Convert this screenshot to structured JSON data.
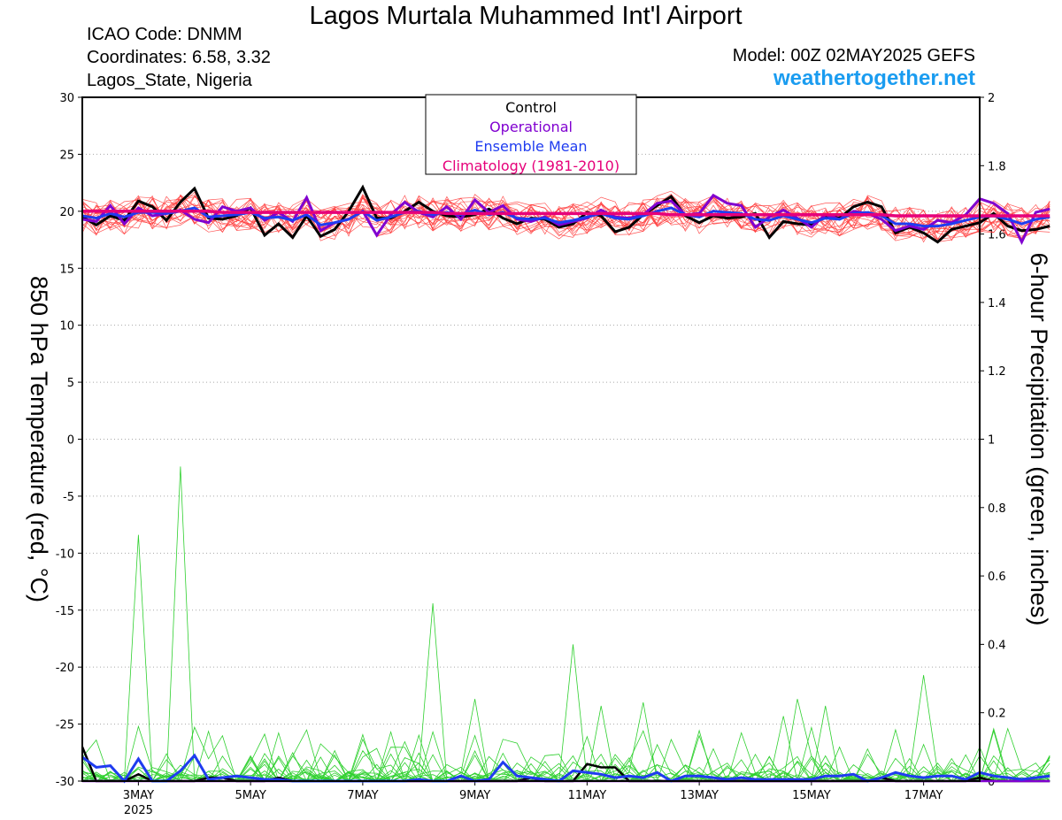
{
  "header": {
    "title": "Lagos Murtala Muhammed Int'l Airport",
    "icao": "ICAO Code: DNMM",
    "coordinates": "Coordinates: 6.58, 3.32",
    "location": "Lagos_State, Nigeria",
    "model_run": "Model: 00Z 02MAY2025 GEFS",
    "site": "weathertogether.net"
  },
  "colors": {
    "members_temp": "#ff3a3a",
    "control": "#000000",
    "operational": "#8000d0",
    "ensemble_mean": "#1f3cf0",
    "climatology": "#e6007a",
    "members_precip": "#2fd02f",
    "site": "#1a9cf0"
  },
  "chart_data": {
    "type": "line",
    "xlabel": "",
    "ylabel_left": "850 hPa Temperature (red, °C)",
    "ylabel_right": "6-hour Precipitation (green, inches)",
    "x_tick_labels": [
      "3MAY",
      "5MAY",
      "7MAY",
      "9MAY",
      "11MAY",
      "13MAY",
      "15MAY",
      "17MAY"
    ],
    "x_tick_year": "2025",
    "x_range_days": [
      2.0,
      18.0
    ],
    "x_tick_days": [
      3,
      5,
      7,
      9,
      11,
      13,
      15,
      17
    ],
    "x_step_days": 0.25,
    "ylim_temp": [
      -30,
      30
    ],
    "yticks_temp": [
      30,
      25,
      20,
      15,
      10,
      5,
      0,
      -5,
      -10,
      -15,
      -20,
      -25,
      -30
    ],
    "ylim_precip": [
      0,
      2
    ],
    "yticks_precip": [
      "2",
      "1.8",
      "1.6",
      "1.4",
      "1.2",
      "1",
      "0.8",
      "0.6",
      "0.4",
      "0.2",
      "0"
    ],
    "grid": true,
    "legend": {
      "placement": "top-center",
      "entries": [
        {
          "label": "Control",
          "color": "#000000"
        },
        {
          "label": "Operational",
          "color": "#8000d0"
        },
        {
          "label": "Ensemble Mean",
          "color": "#1f3cf0"
        },
        {
          "label": "Climatology (1981-2010)",
          "color": "#e6007a"
        }
      ]
    },
    "series": [
      {
        "name": "Control",
        "quantity": "temperature",
        "values": [
          19.5,
          18.8,
          19.6,
          19.2,
          20.9,
          20.4,
          19.2,
          20.8,
          22.0,
          19.4,
          19.3,
          19.6,
          20.3,
          17.9,
          18.9,
          17.7,
          19.6,
          17.8,
          18.4,
          20.0,
          22.1,
          19.4,
          19.4,
          20.0,
          20.8,
          20.0,
          19.6,
          19.5,
          19.7,
          20.2,
          19.4,
          18.9,
          19.4,
          19.3,
          18.6,
          18.9,
          19.9,
          19.6,
          18.2,
          18.6,
          19.7,
          20.5,
          21.3,
          19.6,
          19.0,
          19.6,
          19.4,
          19.5,
          19.8,
          17.7,
          19.1,
          18.9,
          18.8,
          19.6,
          19.4,
          20.4,
          20.8,
          20.4,
          18.1,
          18.6,
          18.1,
          17.3,
          18.4,
          18.7,
          19.0,
          19.8,
          18.7,
          18.3,
          18.4,
          18.7
        ]
      },
      {
        "name": "Operational",
        "quantity": "temperature",
        "values": [
          19.3,
          19.1,
          20.5,
          18.9,
          20.3,
          19.6,
          19.8,
          20.1,
          19.3,
          19.0,
          20.4,
          20.0,
          20.3,
          19.2,
          19.9,
          19.1,
          21.2,
          18.3,
          19.0,
          19.3,
          20.0,
          17.9,
          19.7,
          20.8,
          19.9,
          19.5,
          20.4,
          19.3,
          21.0,
          19.9,
          20.5,
          19.3,
          19.1,
          19.5,
          18.8,
          19.1,
          19.4,
          20.1,
          19.5,
          19.4,
          19.7,
          20.7,
          20.9,
          19.7,
          19.8,
          21.4,
          20.7,
          20.5,
          18.6,
          19.5,
          20.1,
          19.4,
          18.6,
          19.7,
          19.3,
          20.0,
          19.8,
          19.3,
          18.3,
          18.7,
          18.4,
          19.2,
          19.0,
          19.7,
          21.1,
          20.7,
          19.8,
          17.3,
          19.9,
          20.2
        ]
      },
      {
        "name": "Ensemble Mean",
        "quantity": "temperature",
        "values": [
          19.6,
          19.4,
          19.8,
          19.5,
          19.9,
          19.9,
          19.8,
          20.0,
          20.3,
          19.5,
          19.6,
          19.7,
          19.9,
          19.4,
          19.5,
          19.2,
          19.7,
          18.8,
          19.0,
          19.3,
          20.0,
          19.2,
          19.5,
          19.9,
          20.0,
          19.7,
          19.9,
          19.7,
          20.1,
          19.7,
          19.9,
          19.4,
          19.3,
          19.4,
          19.0,
          19.2,
          19.5,
          19.8,
          19.4,
          19.3,
          19.6,
          20.0,
          20.3,
          19.7,
          19.5,
          20.0,
          19.9,
          19.8,
          19.3,
          19.2,
          19.6,
          19.3,
          19.0,
          19.4,
          19.3,
          19.8,
          19.9,
          19.6,
          18.9,
          18.9,
          18.7,
          18.7,
          18.9,
          19.2,
          19.5,
          19.6,
          19.3,
          18.9,
          19.3,
          19.5
        ]
      },
      {
        "name": "Climatology (1981-2010)",
        "quantity": "temperature",
        "values": [
          20.0,
          20.0,
          20.0,
          20.0,
          20.0,
          20.0,
          20.0,
          20.0,
          20.0,
          20.0,
          19.9,
          19.9,
          19.9,
          19.9,
          19.9,
          19.9,
          19.9,
          19.9,
          19.9,
          19.9,
          19.9,
          19.9,
          19.9,
          19.9,
          19.9,
          19.9,
          19.8,
          19.8,
          19.8,
          19.8,
          19.8,
          19.8,
          19.8,
          19.8,
          19.8,
          19.8,
          19.8,
          19.8,
          19.8,
          19.8,
          19.8,
          19.8,
          19.7,
          19.7,
          19.7,
          19.7,
          19.7,
          19.7,
          19.7,
          19.7,
          19.7,
          19.7,
          19.7,
          19.7,
          19.7,
          19.7,
          19.7,
          19.7,
          19.6,
          19.6,
          19.6,
          19.6,
          19.6,
          19.6,
          19.6,
          19.6,
          19.6,
          19.6,
          19.6,
          19.6
        ]
      },
      {
        "name": "Control",
        "quantity": "precipitation",
        "values": [
          0.1,
          0.0,
          0.0,
          0.0,
          0.02,
          0.0,
          0.0,
          0.0,
          0.0,
          0.01,
          0.01,
          0.0,
          0.0,
          0.0,
          0.01,
          0.0,
          0.0,
          0.0,
          0.0,
          0.0,
          0.0,
          0.0,
          0.0,
          0.0,
          0.0,
          0.0,
          0.0,
          0.0,
          0.0,
          0.0,
          0.0,
          0.0,
          0.01,
          0.0,
          0.0,
          0.0,
          0.05,
          0.04,
          0.04,
          0.0,
          0.0,
          0.0,
          0.0,
          0.0,
          0.0,
          0.0,
          0.0,
          0.0,
          0.0,
          0.0,
          0.0,
          0.0,
          0.0,
          0.0,
          0.0,
          0.0,
          0.0,
          0.01,
          0.0,
          0.0,
          0.0,
          0.0,
          0.0,
          0.0,
          0.01,
          0.0,
          0.0,
          0.0,
          0.0,
          0.0
        ]
      },
      {
        "name": "Operational",
        "quantity": "precipitation",
        "values": [
          0.0,
          0.0,
          0.0,
          0.0,
          0.0,
          0.0,
          0.0,
          0.0,
          0.0,
          0.0,
          0.0,
          0.0,
          0.0,
          0.0,
          0.0,
          0.0,
          0.0,
          0.0,
          0.0,
          0.0,
          0.0,
          0.0,
          0.0,
          0.0,
          0.0,
          0.0,
          0.0,
          0.0,
          0.0,
          0.0,
          0.0,
          0.0,
          0.0,
          0.0,
          0.0,
          0.0,
          0.0,
          0.0,
          0.0,
          0.0,
          0.0,
          0.0,
          0.0,
          0.0,
          0.0,
          0.0,
          0.0,
          0.0,
          0.0,
          0.0,
          0.0,
          0.0,
          0.0,
          0.0,
          0.0,
          0.0,
          0.0,
          0.0,
          0.0,
          0.0,
          0.0,
          0.0,
          0.0,
          0.0,
          0.0,
          0.0,
          0.0,
          0.0,
          0.0,
          0.0
        ]
      },
      {
        "name": "Ensemble Mean",
        "quantity": "precipitation",
        "values": [
          0.07,
          0.04,
          0.045,
          0.0,
          0.065,
          0.0,
          0.0,
          0.03,
          0.075,
          0.005,
          0.01,
          0.015,
          0.01,
          0.005,
          0.005,
          0.0,
          0.0,
          0.0,
          0.0,
          0.0,
          0.0,
          0.0,
          0.0,
          0.0,
          0.005,
          0.0,
          0.0,
          0.015,
          0.0,
          0.005,
          0.055,
          0.015,
          0.01,
          0.005,
          0.0,
          0.03,
          0.025,
          0.02,
          0.01,
          0.015,
          0.01,
          0.025,
          0.0,
          0.015,
          0.015,
          0.01,
          0.005,
          0.01,
          0.005,
          0.005,
          0.005,
          0.005,
          0.005,
          0.015,
          0.015,
          0.02,
          0.0,
          0.01,
          0.025,
          0.015,
          0.01,
          0.015,
          0.015,
          0.005,
          0.025,
          0.015,
          0.01,
          0.005,
          0.01,
          0.015
        ]
      },
      {
        "name": "Perturbation members",
        "quantity": "precipitation",
        "peak_values": [
          0.72,
          0.92,
          0.16,
          0.12,
          0.52,
          0.24,
          0.4,
          0.22,
          0.23,
          0.24,
          0.19,
          0.22,
          0.31,
          0.15,
          0.1
        ]
      }
    ]
  }
}
